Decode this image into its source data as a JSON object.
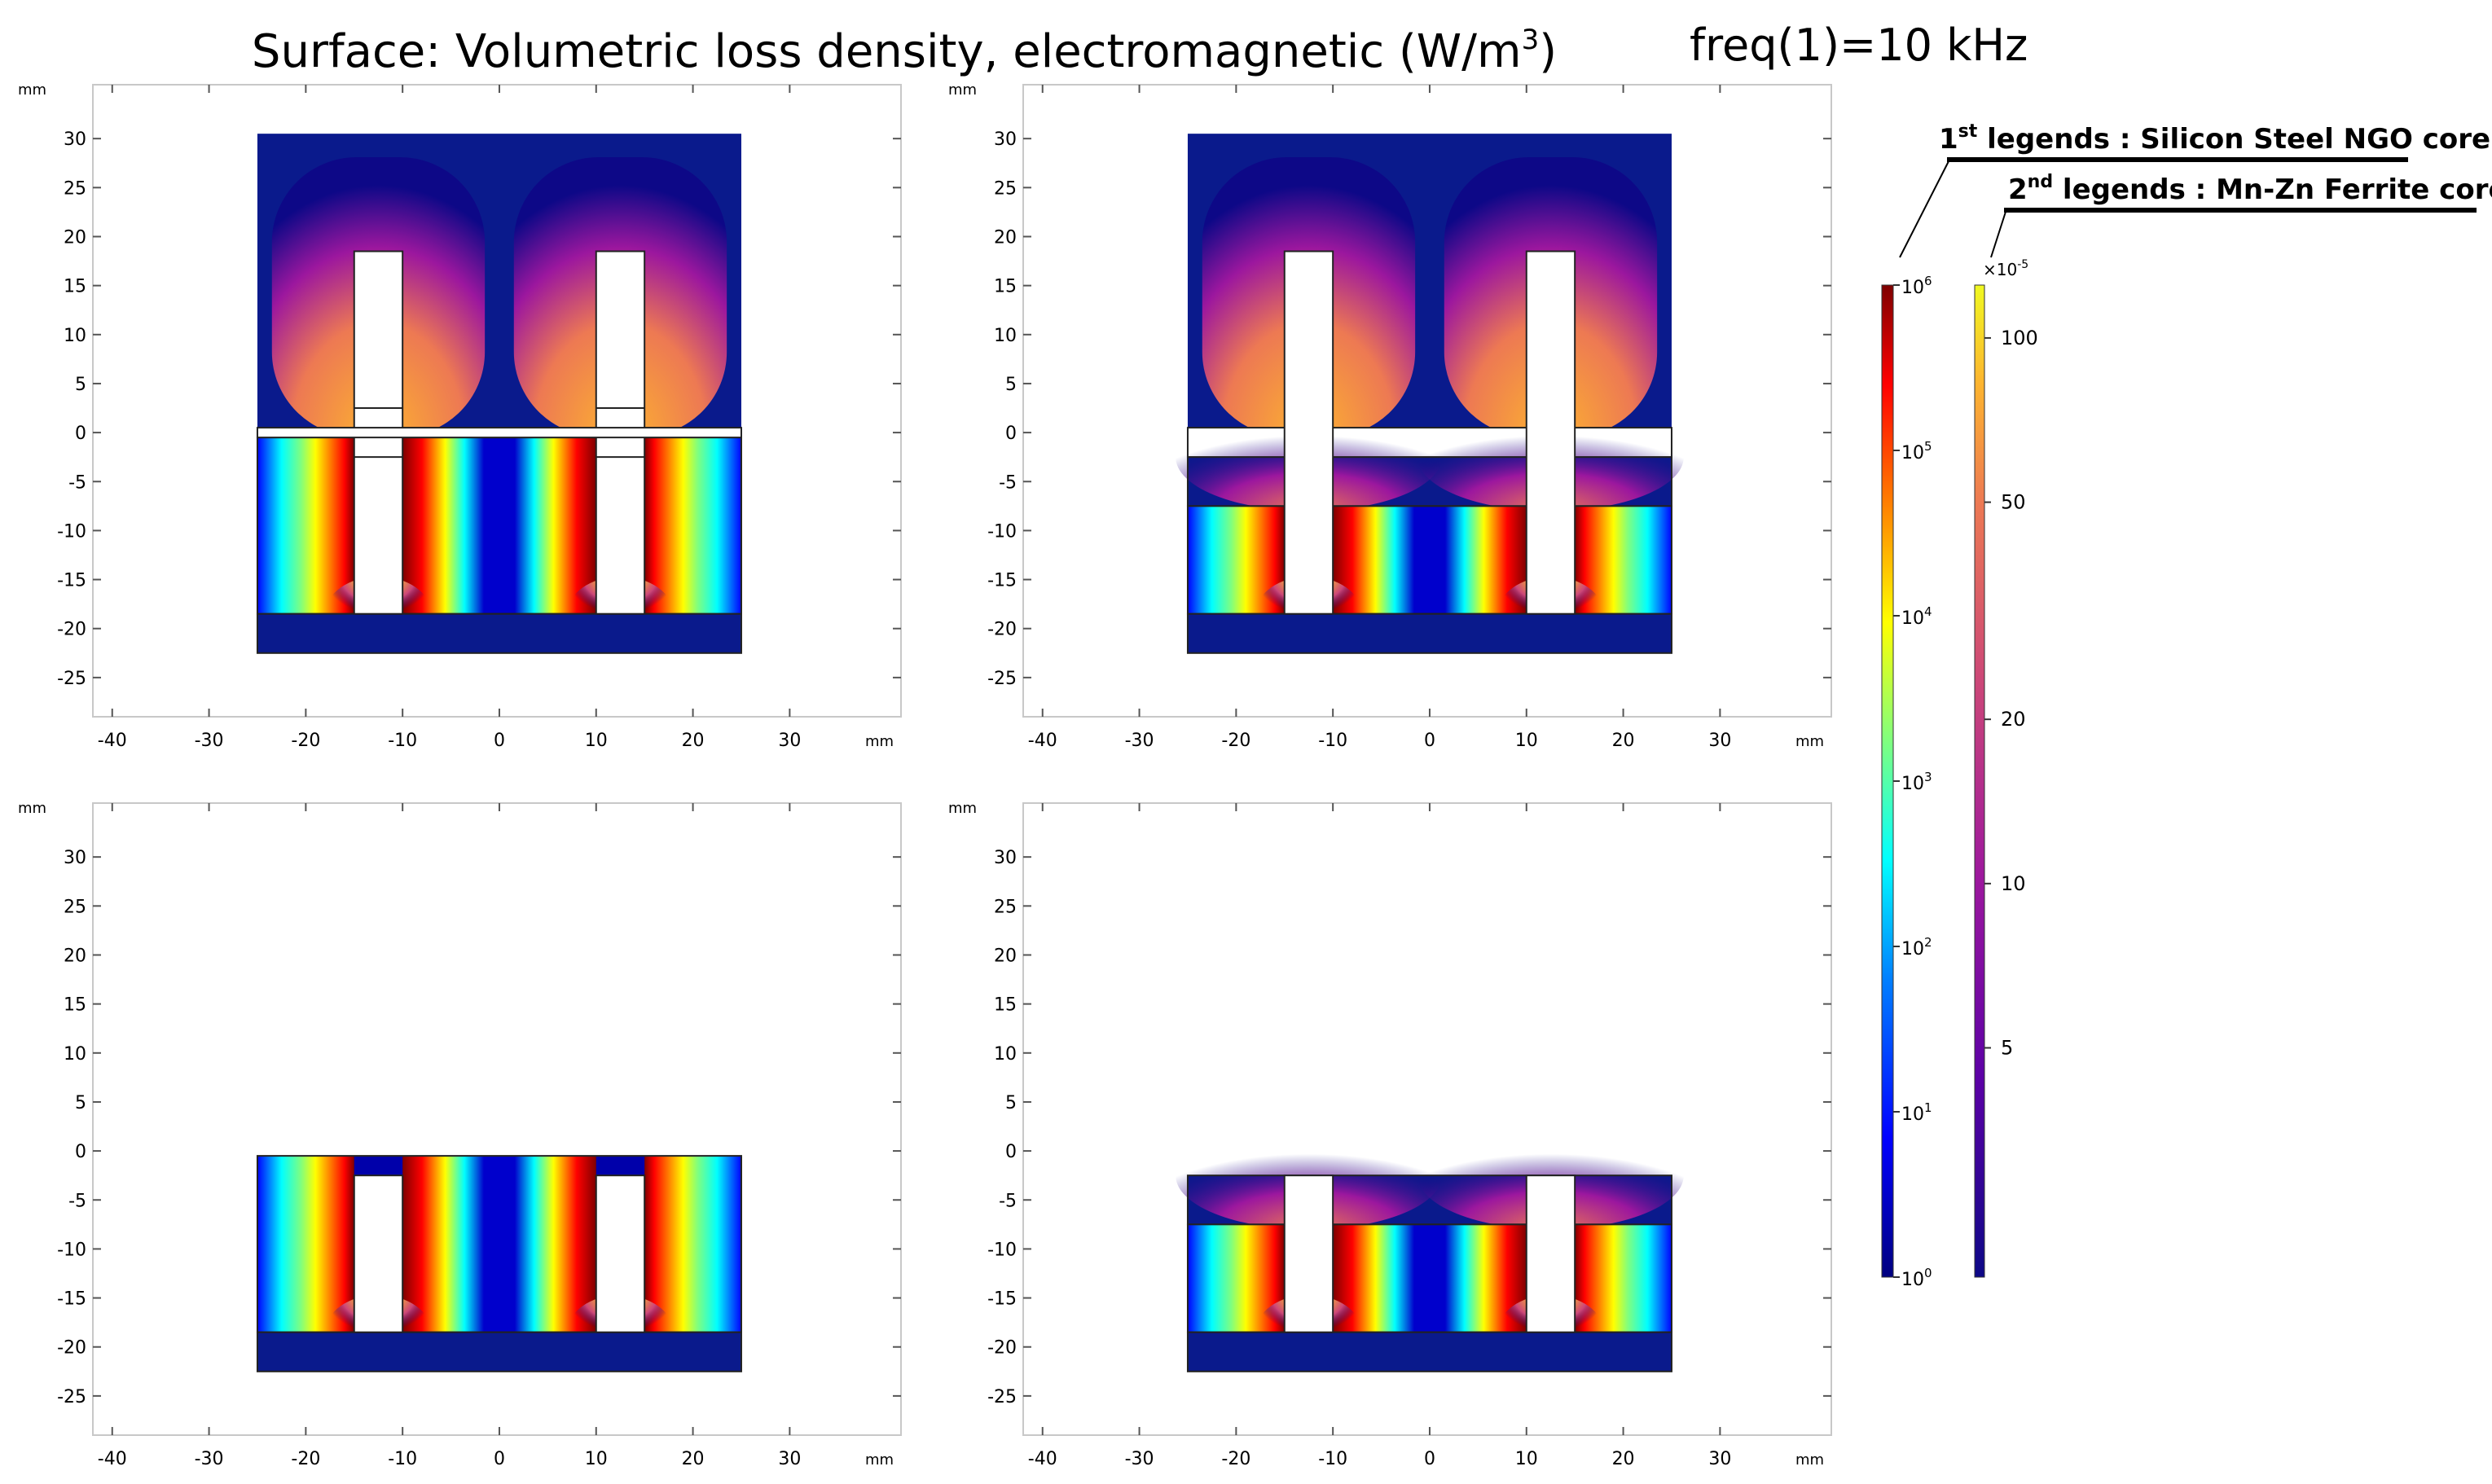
{
  "figure": {
    "title_prefix": "Surface: Volumetric loss density, electromagnetic (W/m",
    "title_sup": "3",
    "title_suffix": ")",
    "freq_label": "freq(1)=10 kHz"
  },
  "axes_common": {
    "unit_label": "mm",
    "x_ticks": [
      -40,
      -30,
      -20,
      -10,
      0,
      10,
      20,
      30
    ],
    "y_ticks": [
      30,
      25,
      20,
      15,
      10,
      5,
      0,
      -5,
      -10,
      -15,
      -20,
      -25
    ],
    "xlim": [
      -42,
      41.5
    ],
    "ylim": [
      -29,
      35.5
    ]
  },
  "colors": {
    "background": "#0a1a8c",
    "plasma": [
      "#0d0887",
      "#5c01a6",
      "#9c179e",
      "#cc4778",
      "#ed7953",
      "#fdb42f",
      "#f0f921"
    ],
    "jet": [
      "#00007f",
      "#0000ff",
      "#007fff",
      "#00ffff",
      "#7fff7f",
      "#ffff00",
      "#ff7f00",
      "#ff0000",
      "#7f0000"
    ]
  },
  "chart_data": [
    {
      "type": "heatmap",
      "name": "top-left",
      "core": "Silicon Steel NGO core (E-E, air gap at y=0)",
      "xlim": [
        -42,
        41.5
      ],
      "ylim": [
        -29,
        35.5
      ],
      "regions": [
        {
          "kind": "ferrite",
          "x": [
            -25,
            25
          ],
          "y": [
            0.5,
            30.5
          ]
        },
        {
          "kind": "steel",
          "x": [
            -25,
            25
          ],
          "y": [
            -18.5,
            -0.5
          ]
        },
        {
          "kind": "ferrite-bottom",
          "x": [
            -25,
            25
          ],
          "y": [
            -22.5,
            -18.5
          ]
        },
        {
          "kind": "window",
          "x": [
            -15,
            -10
          ],
          "y": [
            -18.5,
            18.5
          ]
        },
        {
          "kind": "window",
          "x": [
            10,
            15
          ],
          "y": [
            -18.5,
            18.5
          ]
        },
        {
          "kind": "gap",
          "x": [
            -25,
            25
          ],
          "y": [
            -0.5,
            0.5
          ]
        }
      ]
    },
    {
      "type": "heatmap",
      "name": "top-right",
      "core": "Mn-Zn Ferrite core",
      "xlim": [
        -42,
        41.5
      ],
      "ylim": [
        -29,
        35.5
      ],
      "regions": [
        {
          "kind": "ferrite",
          "x": [
            -25,
            25
          ],
          "y": [
            0.5,
            30.5
          ]
        },
        {
          "kind": "gap",
          "x": [
            -25,
            25
          ],
          "y": [
            -2.5,
            0.5
          ]
        },
        {
          "kind": "ferrite-mid",
          "x": [
            -25,
            25
          ],
          "y": [
            -7.5,
            -2.5
          ]
        },
        {
          "kind": "steel",
          "x": [
            -25,
            25
          ],
          "y": [
            -18.5,
            -7.5
          ]
        },
        {
          "kind": "ferrite-bottom",
          "x": [
            -25,
            25
          ],
          "y": [
            -22.5,
            -18.5
          ]
        },
        {
          "kind": "window",
          "x": [
            -15,
            -10
          ],
          "y": [
            -18.5,
            18.5
          ]
        },
        {
          "kind": "window",
          "x": [
            10,
            15
          ],
          "y": [
            -18.5,
            18.5
          ]
        }
      ]
    },
    {
      "type": "heatmap",
      "name": "bottom-left",
      "core": "Silicon Steel NGO core (E-I)",
      "xlim": [
        -42,
        41.5
      ],
      "ylim": [
        -29,
        35.5
      ],
      "regions": [
        {
          "kind": "steel",
          "x": [
            -25,
            25
          ],
          "y": [
            -18.5,
            -0.5
          ]
        },
        {
          "kind": "ferrite-bottom",
          "x": [
            -25,
            25
          ],
          "y": [
            -22.5,
            -18.5
          ]
        },
        {
          "kind": "window",
          "x": [
            -15,
            -10
          ],
          "y": [
            -18.5,
            -2.5
          ]
        },
        {
          "kind": "window",
          "x": [
            10,
            15
          ],
          "y": [
            -18.5,
            -2.5
          ]
        }
      ]
    },
    {
      "type": "heatmap",
      "name": "bottom-right",
      "core": "Mn-Zn Ferrite core (E-I)",
      "xlim": [
        -42,
        41.5
      ],
      "ylim": [
        -29,
        35.5
      ],
      "regions": [
        {
          "kind": "ferrite-mid",
          "x": [
            -25,
            25
          ],
          "y": [
            -7.5,
            -2.5
          ]
        },
        {
          "kind": "steel",
          "x": [
            -25,
            25
          ],
          "y": [
            -18.5,
            -7.5
          ]
        },
        {
          "kind": "ferrite-bottom",
          "x": [
            -25,
            25
          ],
          "y": [
            -22.5,
            -18.5
          ]
        },
        {
          "kind": "window",
          "x": [
            -15,
            -10
          ],
          "y": [
            -18.5,
            -2.5
          ]
        },
        {
          "kind": "window",
          "x": [
            10,
            15
          ],
          "y": [
            -18.5,
            -2.5
          ]
        }
      ]
    }
  ],
  "legends": {
    "first_label_sup": "st",
    "first_label_num": "1",
    "first_label_text": " legends : Silicon Steel NGO core",
    "second_label_num": "2",
    "second_label_sup": "nd",
    "second_label_text": "  legends : Mn-Zn Ferrite core",
    "first_bar": {
      "scale": "log",
      "ticks": [
        {
          "base": "10",
          "exp": "6",
          "value": 1000000
        },
        {
          "base": "10",
          "exp": "5",
          "value": 100000
        },
        {
          "base": "10",
          "exp": "4",
          "value": 10000
        },
        {
          "base": "10",
          "exp": "3",
          "value": 1000
        },
        {
          "base": "10",
          "exp": "2",
          "value": 100
        },
        {
          "base": "10",
          "exp": "1",
          "value": 10
        },
        {
          "base": "10",
          "exp": "0",
          "value": 1
        }
      ]
    },
    "second_bar": {
      "scale": "log",
      "multiplier_prefix": "×10",
      "multiplier_exp": "-5",
      "ticks": [
        "100",
        "50",
        "20",
        "10",
        "5"
      ],
      "tick_values": [
        100,
        50,
        20,
        10,
        5
      ],
      "range": [
        1.9,
        125
      ]
    }
  }
}
